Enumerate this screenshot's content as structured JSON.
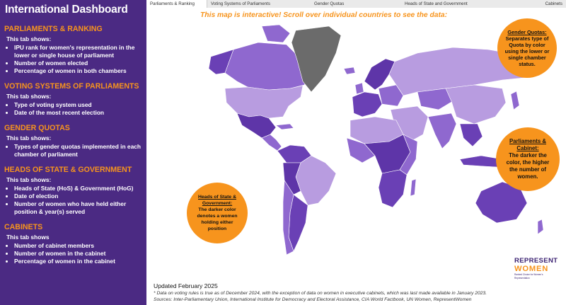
{
  "dashboard_title": "International Dashboard",
  "sections": [
    {
      "heading": "PARLIAMENTS & RANKING",
      "subheading": "This tab shows:",
      "items": [
        "IPU rank for women's representation in the lower or single house of parliament",
        "Number of women elected",
        "Percentage of women in both chambers"
      ]
    },
    {
      "heading": "VOTING SYSTEMS OF PARLIAMENTS",
      "subheading": "This tab shows:",
      "items": [
        "Type of voting system used",
        "Date of the most recent election"
      ]
    },
    {
      "heading": "GENDER QUOTAS",
      "subheading": "This tab shows:",
      "items": [
        "Types of gender quotas implemented in each chamber of parliament"
      ]
    },
    {
      "heading": "HEADS OF STATE & GOVERNMENT",
      "subheading": "This tab shows:",
      "items": [
        "Heads of State (HoS) & Government (HoG)",
        "Date of election",
        "Number of women who have held either position & year(s) served"
      ]
    },
    {
      "heading": "CABINETS",
      "subheading": "This tab shows",
      "items": [
        "Number of cabinet members",
        "Number of women in the cabinet",
        "Percentage of women in the cabinet"
      ]
    }
  ],
  "tabs": [
    {
      "label": "Parliaments & Ranking",
      "active": true
    },
    {
      "label": "Voting Systems of Parliaments",
      "active": false
    },
    {
      "label": "Gender Quotas",
      "active": false
    },
    {
      "label": "Heads of State and Government",
      "active": false
    },
    {
      "label": "Cabinets",
      "active": false
    }
  ],
  "map_hint": "This map is interactive! Scroll over individual countries to see the data:",
  "callouts": {
    "gender_quotas": {
      "heading": "Gender Quotas:",
      "body": "Separates type of Quota by color using the lower or single chamber status."
    },
    "parliaments_cabinet": {
      "heading": "Parliaments & Cabinet:",
      "body": "The darker the color, the higher the number of women."
    },
    "heads_of_state": {
      "heading": "Heads of State & Government:",
      "body": "The darker color denotes a women holding either position"
    }
  },
  "updated": "Updated February 2025",
  "footnote": "* Data on voting rules is true as of December 2024, with the exception of data on women in executive cabinets, which was last made available in January 2023.",
  "sources": "Sources: Inter-Parliamentary Union, International Institute for Democracy and Electoral Assistance, CIA World Factbook, UN Women, RepresentWomen",
  "logo": {
    "line1": "REPRESENT",
    "line2": "WOMEN",
    "tagline": "Ranked Choice for Women's Representation"
  },
  "colors": {
    "accent": "#f7941d",
    "sidebar": "#4b2a83",
    "map_light": "#b89ce0",
    "map_mid": "#8f68cf",
    "map_dark": "#5e35a8",
    "map_nodata": "#6b6b6b"
  }
}
